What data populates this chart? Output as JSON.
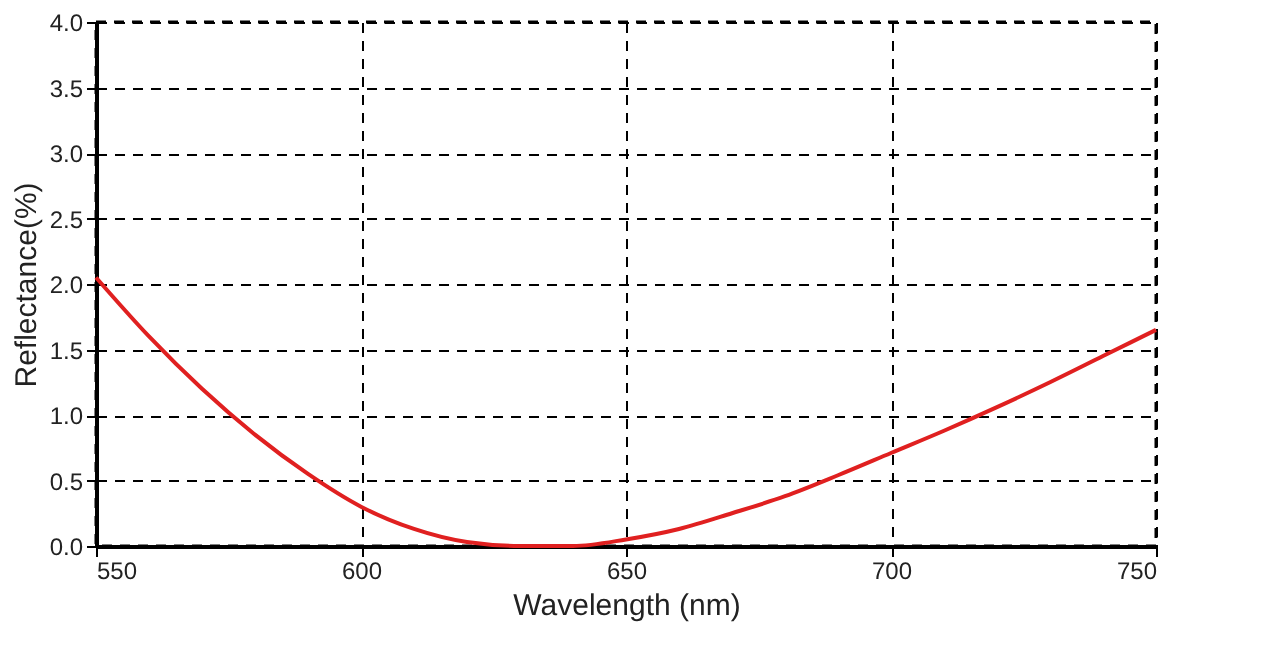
{
  "chart_data": {
    "type": "line",
    "xlabel": "Wavelength (nm)",
    "ylabel": "Reflectance(%)",
    "x": [
      550,
      560,
      570,
      580,
      590,
      600,
      610,
      620,
      630,
      640,
      650,
      660,
      670,
      680,
      690,
      700,
      710,
      720,
      730,
      740,
      750
    ],
    "series": [
      {
        "color": "#e02020",
        "values": [
          2.05,
          1.6,
          1.2,
          0.85,
          0.55,
          0.3,
          0.13,
          0.03,
          0.0,
          0.0,
          0.05,
          0.13,
          0.25,
          0.38,
          0.54,
          0.71,
          0.88,
          1.06,
          1.25,
          1.45,
          1.65
        ]
      }
    ],
    "xlim": [
      550,
      750
    ],
    "xticks": [
      550,
      600,
      650,
      700,
      750
    ],
    "ylim": [
      0,
      4
    ],
    "yticks": [
      {
        "value": 0,
        "label": "0.0"
      },
      {
        "value": 0.5,
        "label": "0.5"
      },
      {
        "value": 1,
        "label": "1.0"
      },
      {
        "value": 1.5,
        "label": "1.5"
      },
      {
        "value": 2,
        "label": "2.0"
      },
      {
        "value": 2.5,
        "label": "2.5"
      },
      {
        "value": 3,
        "label": "3.0"
      },
      {
        "value": 3.5,
        "label": "3.5"
      },
      {
        "value": 4,
        "label": "4.0"
      }
    ],
    "grid": true,
    "marker": "none",
    "line_style": "solid"
  }
}
